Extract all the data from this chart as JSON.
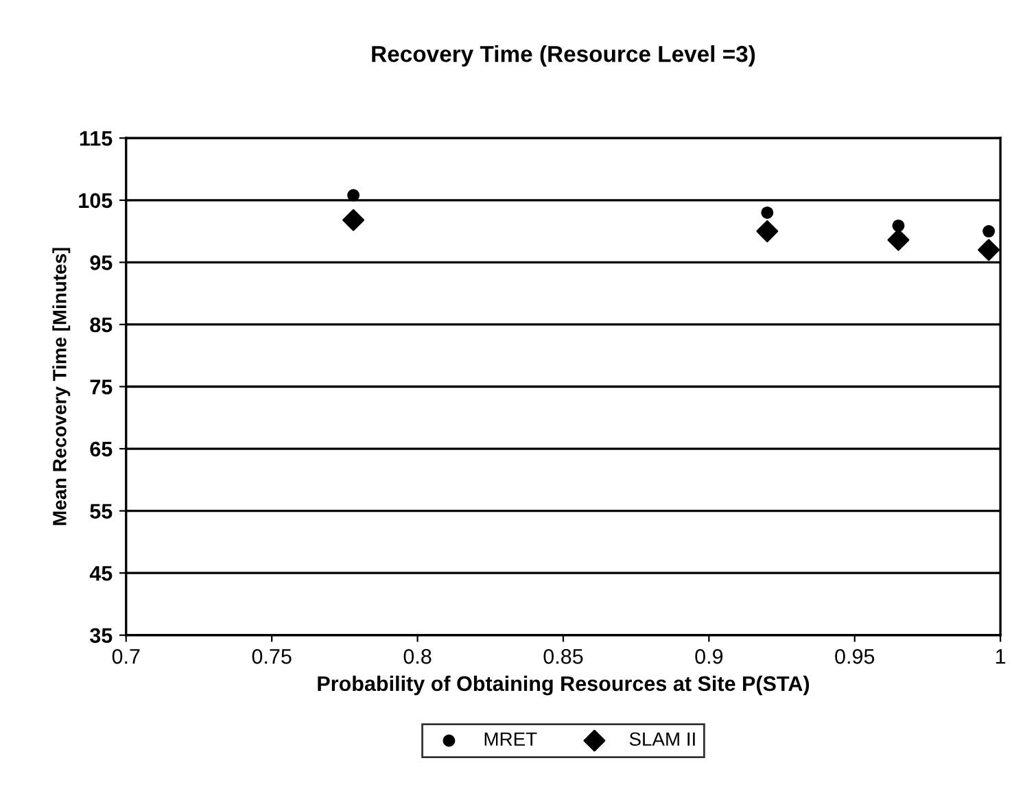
{
  "chart_data": {
    "type": "scatter",
    "title": "Recovery Time (Resource Level =3)",
    "xlabel": "Probability of Obtaining Resources at Site P(STA)",
    "ylabel": "Mean Recovery Time [Minutes]",
    "x": [
      0.778,
      0.92,
      0.965,
      0.996
    ],
    "series": [
      {
        "name": "MRET",
        "color": "#000000",
        "marker": "circle",
        "values": [
          105.8,
          103.0,
          100.9,
          100.0
        ]
      },
      {
        "name": "SLAM II",
        "color": "#000000",
        "marker": "diamond",
        "values": [
          101.8,
          100.0,
          98.6,
          97.0
        ]
      }
    ],
    "xlim": [
      0.7,
      1
    ],
    "xticks": [
      0.7,
      0.75,
      0.8,
      0.85,
      0.9,
      0.95,
      1
    ],
    "ylim": [
      35,
      115
    ],
    "yticks": [
      35,
      45,
      55,
      65,
      75,
      85,
      95,
      105,
      115
    ],
    "grid": "y",
    "legend": "bottom"
  }
}
